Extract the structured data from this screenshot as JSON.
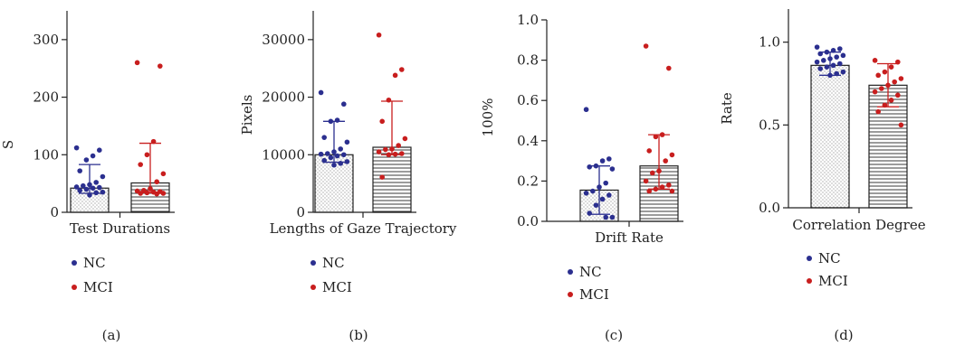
{
  "colors": {
    "nc": "#2b2f8f",
    "mci": "#c81e1e",
    "axis": "#222222"
  },
  "chart_data": [
    {
      "type": "bar",
      "panel_label": "(a)",
      "xlabel": "Test Durations",
      "ylabel": "S",
      "ylim": [
        0,
        350
      ],
      "yticks": [
        0,
        100,
        200,
        300
      ],
      "ytick_labels": [
        "0",
        "100",
        "200",
        "300"
      ],
      "legend": [
        "NC",
        "MCI"
      ],
      "series": [
        {
          "name": "NC",
          "mean": 42,
          "err_low": 33,
          "err_high": 83,
          "fill": "dots",
          "points": [
            112,
            108,
            98,
            91,
            72,
            62,
            52,
            48,
            46,
            44,
            43,
            42,
            40,
            38,
            35,
            34,
            30
          ]
        },
        {
          "name": "MCI",
          "mean": 51,
          "err_low": 34,
          "err_high": 120,
          "fill": "hlines",
          "points": [
            260,
            254,
            123,
            100,
            83,
            67,
            53,
            41,
            38,
            37,
            36,
            35,
            34,
            33,
            33,
            32
          ]
        }
      ]
    },
    {
      "type": "bar",
      "panel_label": "(b)",
      "xlabel": "Lengths of Gaze Trajectory",
      "ylabel": "Pixels",
      "ylim": [
        0,
        35000
      ],
      "yticks": [
        0,
        10000,
        20000,
        30000
      ],
      "ytick_labels": [
        "0",
        "10000",
        "20000",
        "30000"
      ],
      "legend": [
        "NC",
        "MCI"
      ],
      "series": [
        {
          "name": "NC",
          "mean": 10000,
          "err_low": 8700,
          "err_high": 15800,
          "fill": "dots",
          "points": [
            20800,
            18800,
            16000,
            15800,
            13000,
            12200,
            11000,
            10500,
            10200,
            10100,
            10000,
            9800,
            9500,
            9000,
            8800,
            8500,
            8200
          ]
        },
        {
          "name": "MCI",
          "mean": 11300,
          "err_low": 10000,
          "err_high": 19300,
          "fill": "hlines",
          "points": [
            30800,
            24800,
            23800,
            19500,
            15800,
            12800,
            11600,
            11000,
            10900,
            10500,
            10200,
            10100,
            10000,
            6100
          ]
        }
      ]
    },
    {
      "type": "bar",
      "panel_label": "(c)",
      "xlabel": "Drift Rate",
      "ylabel": "100%",
      "ylim": [
        0,
        1.0
      ],
      "yticks": [
        0,
        0.2,
        0.4,
        0.6,
        0.8,
        1.0
      ],
      "ytick_labels": [
        "0.0",
        "0.2",
        "0.4",
        "0.6",
        "0.8",
        "1.0"
      ],
      "legend": [
        "NC",
        "MCI"
      ],
      "series": [
        {
          "name": "NC",
          "mean": 0.155,
          "err_low": 0.035,
          "err_high": 0.275,
          "fill": "dots",
          "points": [
            0.555,
            0.31,
            0.3,
            0.275,
            0.27,
            0.26,
            0.19,
            0.17,
            0.15,
            0.14,
            0.13,
            0.11,
            0.08,
            0.04,
            0.02,
            0.02
          ]
        },
        {
          "name": "MCI",
          "mean": 0.275,
          "err_low": 0.16,
          "err_high": 0.43,
          "fill": "hlines",
          "points": [
            0.87,
            0.76,
            0.43,
            0.42,
            0.35,
            0.33,
            0.3,
            0.25,
            0.24,
            0.2,
            0.18,
            0.17,
            0.16,
            0.15,
            0.15
          ]
        }
      ]
    },
    {
      "type": "bar",
      "panel_label": "(d)",
      "xlabel": "Correlation Degree",
      "ylabel": "Rate",
      "ylim": [
        0,
        1.2
      ],
      "yticks": [
        0,
        0.5,
        1.0
      ],
      "ytick_labels": [
        "0.0",
        "0.5",
        "1.0"
      ],
      "legend": [
        "NC",
        "MCI"
      ],
      "series": [
        {
          "name": "NC",
          "mean": 0.86,
          "err_low": 0.8,
          "err_high": 0.94,
          "fill": "dots",
          "points": [
            0.97,
            0.96,
            0.95,
            0.94,
            0.93,
            0.92,
            0.91,
            0.9,
            0.89,
            0.88,
            0.87,
            0.86,
            0.85,
            0.84,
            0.82,
            0.81,
            0.8
          ]
        },
        {
          "name": "MCI",
          "mean": 0.74,
          "err_low": 0.61,
          "err_high": 0.87,
          "fill": "hlines",
          "points": [
            0.89,
            0.88,
            0.85,
            0.82,
            0.8,
            0.78,
            0.76,
            0.74,
            0.72,
            0.7,
            0.68,
            0.65,
            0.62,
            0.58,
            0.5
          ]
        }
      ]
    }
  ]
}
